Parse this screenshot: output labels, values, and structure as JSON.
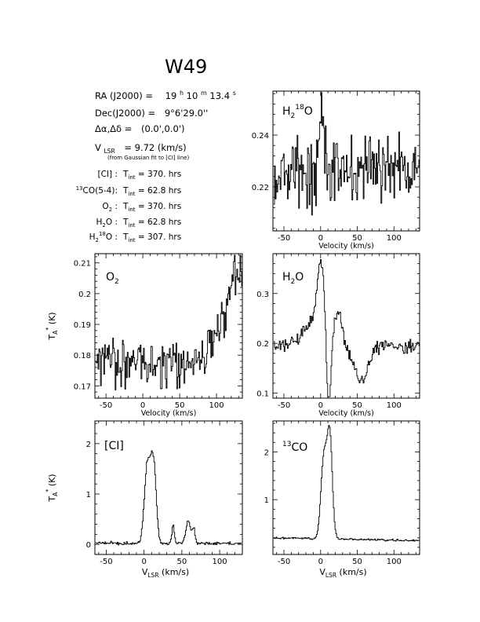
{
  "title": "W49",
  "info": {
    "ra_label": "RA (J2000) =",
    "ra_value": [
      "19",
      "h",
      "10",
      "m",
      "13.4",
      "s"
    ],
    "dec_label": "Dec(J2000) =",
    "dec_value": "9°6'29.0''",
    "offset_label": "Δα,Δδ =",
    "offset_value": "(0.0',0.0')",
    "vlsr_label": "V",
    "vlsr_sub": "LSR",
    "vlsr_value": "= 9.72 (km/s)",
    "vlsr_note": "(from Gaussian fit to [CI] line)",
    "tint_label_main": "T",
    "tint_label_sub": "int",
    "lines": [
      {
        "name": "[CI] :",
        "time": "= 370. hrs"
      },
      {
        "name_sup": "13",
        "name": "CO(5-4):",
        "time": "= 62.8 hrs"
      },
      {
        "name": "O",
        "name_sub": "2",
        "name_tail": " :",
        "time": "= 370. hrs"
      },
      {
        "name": "H",
        "name_sub": "2",
        "name_tail": "O :",
        "time": "= 62.8 hrs"
      },
      {
        "name": "H",
        "name_sub": "2",
        "name_sup": "18",
        "name_tail": "O :",
        "time": "= 307. hrs"
      }
    ]
  },
  "axis_text": {
    "velocity_label": "Velocity (km/s)",
    "vlsr_label_main": "V",
    "vlsr_label_sub": "LSR",
    "vlsr_label_tail": " (km/s)",
    "ta_main": "T",
    "ta_sub": "A",
    "ta_sup": "*",
    "ta_tail": " (K)"
  },
  "chart_data": [
    {
      "type": "line",
      "id": "h2-18o",
      "label_main": "H",
      "label_sub": "2",
      "label_sup": "18",
      "label_tail": "O",
      "xlim": [
        -65,
        135
      ],
      "ylim": [
        0.203,
        0.257
      ],
      "xticks": [
        -50,
        0,
        50,
        100
      ],
      "yticks": [
        0.22,
        0.24
      ],
      "xlabel_style": "velocity",
      "profile": {
        "base": 0.226,
        "slope": 2e-05,
        "noise": 0.007,
        "features": [
          {
            "c": 1,
            "w": 4,
            "a": 0.02
          },
          {
            "c": 35,
            "w": 10,
            "a": -0.004
          }
        ]
      }
    },
    {
      "type": "line",
      "id": "o2",
      "label_main": "O",
      "label_sub": "2",
      "xlim": [
        -65,
        135
      ],
      "ylim": [
        0.166,
        0.213
      ],
      "xticks": [
        -50,
        0,
        50,
        100
      ],
      "yticks": [
        0.17,
        0.18,
        0.19,
        0.2,
        0.21
      ],
      "xlabel_style": "velocity",
      "profile": {
        "base": 0.178,
        "slope": 0.0,
        "noise": 0.004,
        "features": [
          {
            "c": 130,
            "w": 22,
            "a": 0.025
          },
          {
            "c": 135,
            "w": 12,
            "a": 0.005
          }
        ]
      }
    },
    {
      "type": "line",
      "id": "h2o",
      "label_main": "H",
      "label_sub": "2",
      "label_tail": "O",
      "xlim": [
        -65,
        135
      ],
      "ylim": [
        0.09,
        0.38
      ],
      "xticks": [
        -50,
        0,
        50,
        100
      ],
      "yticks": [
        0.1,
        0.2,
        0.3
      ],
      "xlabel_style": "velocity",
      "profile": {
        "base": 0.195,
        "slope": 0.0,
        "noise": 0.006,
        "features": [
          {
            "c": 1,
            "w": 6,
            "a": 0.155
          },
          {
            "c": 10,
            "w": 3,
            "a": -0.18
          },
          {
            "c": 23,
            "w": 5,
            "a": 0.07
          },
          {
            "c": 55,
            "w": 9,
            "a": -0.07
          },
          {
            "c": -15,
            "w": 12,
            "a": 0.04
          }
        ]
      }
    },
    {
      "type": "line",
      "id": "ci",
      "label_main": "[CI]",
      "xlim": [
        -65,
        130
      ],
      "ylim": [
        -0.2,
        2.45
      ],
      "xticks": [
        -50,
        0,
        50,
        100
      ],
      "yticks": [
        0,
        1,
        2
      ],
      "xlabel_style": "vlsr",
      "profile": {
        "base": 0.02,
        "slope": 0.0,
        "noise": 0.015,
        "features": [
          {
            "c": 4,
            "w": 4,
            "a": 1.55
          },
          {
            "c": 12,
            "w": 3.5,
            "a": 1.55
          },
          {
            "c": 38,
            "w": 1.6,
            "a": 0.38
          },
          {
            "c": 58,
            "w": 3,
            "a": 0.45
          },
          {
            "c": 65,
            "w": 1.8,
            "a": 0.3
          }
        ]
      }
    },
    {
      "type": "line",
      "id": "13co",
      "label_sup": "13",
      "label_main": "CO",
      "xlim": [
        -65,
        135
      ],
      "ylim": [
        -0.15,
        2.65
      ],
      "xticks": [
        -50,
        0,
        50,
        100
      ],
      "yticks": [
        1,
        2
      ],
      "xlabel_style": "vlsr",
      "profile": {
        "base": 0.18,
        "slope": -0.0003,
        "noise": 0.01,
        "features": [
          {
            "c": 4,
            "w": 4,
            "a": 1.7
          },
          {
            "c": 12,
            "w": 3.5,
            "a": 2.1
          }
        ]
      }
    }
  ]
}
